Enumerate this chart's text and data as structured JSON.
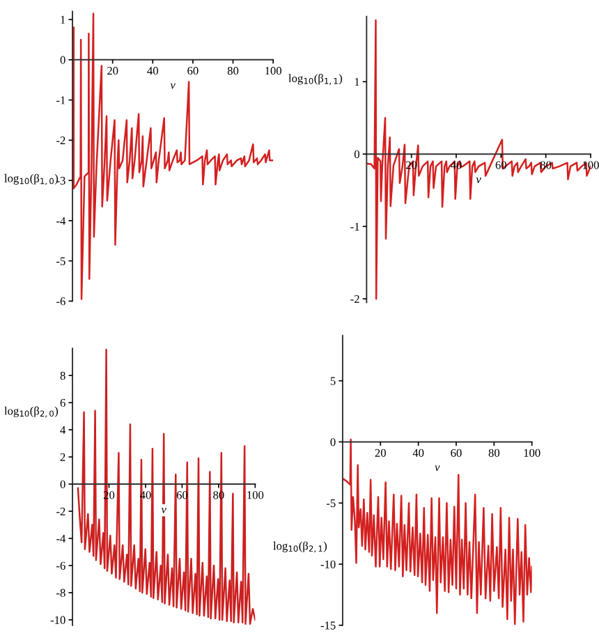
{
  "chart_data": [
    {
      "type": "line",
      "xlabel": "v",
      "ylabel": "log$_{10}$(β$_{1,0}$)",
      "xlim": [
        0,
        100
      ],
      "ylim": [
        -6,
        1.2
      ],
      "xticks": [
        20,
        40,
        60,
        80,
        100
      ],
      "yticks": [
        -6,
        -5,
        -4,
        -3,
        -2,
        -1,
        0,
        1
      ],
      "x": [
        0.6,
        0.6,
        2,
        4,
        4.2,
        4.5,
        6,
        8,
        8.1,
        8.4,
        9.5,
        10.4,
        10.7,
        12,
        14.5,
        14.8,
        16,
        17,
        17.3,
        19,
        21,
        21.3,
        22.5,
        23,
        23.3,
        25,
        27,
        27.3,
        28.5,
        29.6,
        29.9,
        31,
        33,
        33.3,
        34.5,
        35,
        35.3,
        37,
        39,
        39.3,
        40.5,
        41.6,
        41.9,
        43,
        45.7,
        46,
        47.5,
        48,
        48.3,
        50,
        52,
        52.3,
        53.5,
        54,
        54.3,
        56,
        58,
        58.3,
        62,
        64.7,
        65,
        66,
        67,
        67.3,
        69,
        71,
        71.3,
        72.5,
        73,
        73.3,
        75,
        77,
        77.3,
        79,
        79.3,
        82,
        84,
        84.3,
        85.7,
        86,
        88,
        90,
        90.3,
        92,
        92.3,
        94,
        96,
        96.3,
        98,
        98.3,
        100
      ],
      "series": [
        {
          "color": "#d42020",
          "values": [
            0.8,
            -3.2,
            -3.1,
            -2.9,
            0.5,
            -5.95,
            -2.9,
            -2.8,
            0.65,
            -5.45,
            -2.6,
            1.15,
            -4.4,
            -2.6,
            -0.15,
            -3.65,
            -2.55,
            -1.4,
            -3.5,
            -2.5,
            -1.5,
            -4.6,
            -2.5,
            -2.0,
            -2.7,
            -2.5,
            -1.5,
            -3.05,
            -2.5,
            -1.7,
            -2.95,
            -2.5,
            -1.35,
            -2.8,
            -2.5,
            -1.9,
            -3.15,
            -2.5,
            -1.7,
            -2.7,
            -2.5,
            -2.3,
            -3.05,
            -2.5,
            -1.45,
            -2.7,
            -2.5,
            -2.3,
            -2.75,
            -2.5,
            -2.25,
            -2.55,
            -2.5,
            -2.3,
            -2.6,
            -2.5,
            -0.55,
            -2.6,
            -2.5,
            -2.4,
            -3.1,
            -2.5,
            -2.25,
            -2.6,
            -2.5,
            -2.4,
            -3.1,
            -2.5,
            -2.35,
            -2.75,
            -2.5,
            -2.35,
            -2.6,
            -2.5,
            -2.65,
            -2.5,
            -2.45,
            -2.6,
            -2.4,
            -2.65,
            -2.5,
            -2.1,
            -2.55,
            -2.45,
            -2.6,
            -2.5,
            -2.35,
            -2.55,
            -2.25,
            -2.5,
            -2.5
          ]
        }
      ]
    },
    {
      "type": "line",
      "xlabel": "v",
      "ylabel": "log$_{10}$(β$_{1,1}$)",
      "xlim": [
        0,
        100
      ],
      "ylim": [
        -2.05,
        1.9
      ],
      "xticks": [
        20,
        40,
        60,
        80,
        100
      ],
      "yticks": [
        -2,
        -1,
        0,
        1
      ],
      "x": [
        0,
        2,
        3.5,
        4.1,
        4.3,
        5,
        6.2,
        6.4,
        7,
        8.3,
        8.6,
        9.5,
        10.4,
        10.7,
        12,
        14.5,
        14.8,
        16,
        17,
        17.3,
        19,
        20.7,
        21,
        22,
        23,
        23.3,
        25,
        27.3,
        27.6,
        28.5,
        29.6,
        29.9,
        31,
        33.5,
        33.8,
        34.8,
        35.6,
        35.9,
        37,
        39.3,
        39.6,
        40.5,
        41.6,
        41.9,
        43,
        46,
        46.3,
        47.2,
        48.2,
        48.5,
        50,
        52.8,
        53.1,
        55,
        60.5,
        60.8,
        62,
        64.8,
        65.1,
        66,
        67.3,
        67.6,
        69,
        71,
        71.3,
        72.5,
        73.5,
        73.8,
        75,
        77.6,
        77.9,
        80,
        82.8,
        83.1,
        86,
        89.6,
        89.9,
        91,
        93.8,
        94.1,
        96,
        98,
        98.3,
        100
      ],
      "series": [
        {
          "color": "#d42020",
          "values": [
            -0.13,
            -0.14,
            -0.2,
            1.85,
            -2.0,
            -0.05,
            -0.1,
            -0.65,
            -0.17,
            0.5,
            -1.17,
            -0.15,
            0.23,
            -0.72,
            -0.16,
            0.07,
            -0.4,
            -0.17,
            0.13,
            -0.68,
            -0.17,
            -0.1,
            -0.57,
            -0.17,
            0.12,
            -0.3,
            -0.17,
            -0.1,
            -0.6,
            -0.17,
            -0.1,
            -0.47,
            -0.17,
            -0.1,
            -0.73,
            -0.17,
            -0.1,
            -0.25,
            -0.17,
            -0.1,
            -0.62,
            -0.17,
            -0.1,
            -0.18,
            -0.17,
            -0.1,
            -0.62,
            -0.17,
            -0.1,
            -0.25,
            -0.17,
            -0.12,
            -0.3,
            -0.17,
            0.2,
            -0.2,
            -0.17,
            -0.1,
            -0.3,
            -0.17,
            -0.12,
            -0.25,
            -0.17,
            -0.07,
            -0.2,
            -0.17,
            -0.12,
            -0.28,
            -0.17,
            -0.12,
            -0.25,
            -0.17,
            -0.12,
            -0.2,
            -0.17,
            -0.12,
            -0.35,
            -0.17,
            -0.12,
            -0.23,
            -0.17,
            -0.12,
            -0.3,
            -0.17
          ]
        }
      ]
    },
    {
      "type": "line",
      "xlabel": "v",
      "ylabel": "log$_{10}$(β$_{2,0}$)",
      "xlim": [
        0,
        100
      ],
      "ylim": [
        -10.4,
        10.0
      ],
      "xticks": [
        20,
        40,
        60,
        80,
        100
      ],
      "yticks": [
        -10,
        -8,
        -6,
        -4,
        -2,
        0,
        2,
        4,
        6,
        8
      ],
      "x": [
        3,
        4,
        5,
        6.3,
        6.8,
        8.5,
        9.3,
        10.8,
        11.5,
        12.4,
        12.9,
        14.6,
        15.4,
        16.9,
        17.6,
        18.5,
        19,
        20.7,
        21.5,
        23,
        23.8,
        25.3,
        25.8,
        27.5,
        28.3,
        29.8,
        30.6,
        31.6,
        32.1,
        33.8,
        34.6,
        36.1,
        36.9,
        37.7,
        38.2,
        39.9,
        40.7,
        42.2,
        43,
        43.8,
        44.3,
        46,
        46.8,
        48.3,
        49.1,
        50,
        50.5,
        52.2,
        53,
        54.5,
        55.3,
        56.5,
        57,
        58.7,
        59.5,
        61,
        61.8,
        62.8,
        63.3,
        65,
        65.8,
        67.3,
        68.1,
        69,
        69.5,
        71.2,
        72,
        73.5,
        74.3,
        75.2,
        75.7,
        77.4,
        78.2,
        79.7,
        80.5,
        81.5,
        82,
        83.7,
        84.5,
        86,
        86.8,
        87.8,
        88.3,
        90,
        90.8,
        92.3,
        93.1,
        94.2,
        94.7,
        96.4,
        97.2,
        98.7,
        100
      ],
      "series": [
        {
          "color": "#cc2020",
          "values": [
            -0.3,
            -2.5,
            -4.3,
            5.3,
            -4.8,
            -2.2,
            -5.0,
            -3.0,
            -5.3,
            5.4,
            -5.6,
            -2.6,
            -5.9,
            -3.6,
            -6.2,
            9.9,
            -6.4,
            -3.8,
            -6.6,
            -4.5,
            -6.9,
            2.3,
            -7.0,
            -4.5,
            -7.2,
            -5.2,
            -7.4,
            4.4,
            -7.5,
            -4.5,
            -7.7,
            -5.5,
            -7.9,
            1.8,
            -8.0,
            -4.8,
            -8.1,
            -5.8,
            -8.3,
            2.6,
            -8.4,
            -5.0,
            -8.5,
            -6.0,
            -8.7,
            3.7,
            -8.8,
            -5.2,
            -8.9,
            -6.2,
            -9.0,
            0.7,
            -9.1,
            -5.5,
            -9.2,
            -6.5,
            -9.3,
            1.6,
            -9.4,
            -5.5,
            -9.5,
            -6.6,
            -9.6,
            1.9,
            -9.7,
            -5.8,
            -9.7,
            -6.8,
            -9.8,
            0.9,
            -9.9,
            -6.0,
            -9.9,
            -7.0,
            -10.0,
            2.3,
            -10.0,
            -6.2,
            -10.1,
            -7.1,
            -10.1,
            -0.7,
            -10.2,
            -6.5,
            -10.2,
            -7.2,
            -10.2,
            2.8,
            -10.3,
            -6.6,
            -10.3,
            -9.2,
            -10.0
          ]
        }
      ]
    },
    {
      "type": "line",
      "xlabel": "v",
      "ylabel": "log$_{10}$(β$_{2,1}$)",
      "xlim": [
        0,
        100
      ],
      "ylim": [
        -15,
        8.7
      ],
      "xticks": [
        20,
        40,
        60,
        80,
        100
      ],
      "yticks": [
        -15,
        -10,
        -5,
        0,
        5
      ],
      "x": [
        0,
        2,
        4,
        4.3,
        4.7,
        5.5,
        6.5,
        7.2,
        8,
        8.5,
        9.5,
        10.3,
        11.2,
        12,
        13,
        14,
        14.8,
        15.5,
        16.5,
        17.5,
        18.8,
        19.6,
        20.5,
        21.5,
        22.7,
        23.5,
        24.5,
        25.5,
        27,
        27.8,
        28.7,
        29.8,
        31,
        31.8,
        32.7,
        33.7,
        35,
        35.8,
        37,
        38,
        39,
        39.8,
        41,
        42,
        43,
        43.8,
        45,
        46,
        47,
        47.8,
        49,
        49.8,
        51,
        51.8,
        53,
        54,
        55,
        56,
        57,
        58,
        59,
        60,
        61.2,
        62,
        63,
        64,
        65,
        66,
        67,
        68,
        70,
        71,
        72,
        73,
        74.5,
        75.5,
        77,
        78,
        79,
        80,
        81.5,
        82.5,
        83.5,
        84.5,
        86,
        87,
        88,
        89,
        90,
        91,
        92.5,
        93.5,
        94.5,
        95.5,
        96.5,
        97.5,
        98.5,
        99.5,
        100
      ],
      "series": [
        {
          "color": "#d42020",
          "values": [
            -3.0,
            -3.2,
            -3.5,
            0.2,
            -7.2,
            -4.5,
            -6.5,
            -9.9,
            -1.9,
            -7.0,
            -5.5,
            -8.5,
            -4.7,
            -8.8,
            -5.8,
            -9.0,
            -3.1,
            -9.3,
            -6.0,
            -10.2,
            -4.5,
            -10.2,
            -6.2,
            -9.6,
            -3.3,
            -10.2,
            -6.5,
            -10.4,
            -4.3,
            -10.5,
            -6.7,
            -10.2,
            -4.4,
            -11.0,
            -6.8,
            -10.5,
            -5.0,
            -10.6,
            -7.0,
            -10.9,
            -4.3,
            -11.0,
            -7.5,
            -11.5,
            -5.4,
            -11.7,
            -7.6,
            -12.2,
            -4.6,
            -11.3,
            -7.8,
            -14.0,
            -4.6,
            -11.5,
            -7.8,
            -12.2,
            -5.0,
            -12.3,
            -8.0,
            -11.7,
            -5.3,
            -12.0,
            -2.7,
            -12.5,
            -8.0,
            -12.0,
            -5.0,
            -12.5,
            -8.2,
            -12.8,
            -4.3,
            -14.0,
            -8.2,
            -12.5,
            -5.4,
            -12.8,
            -8.5,
            -13.0,
            -5.9,
            -12.2,
            -8.6,
            -12.8,
            -5.4,
            -13.5,
            -8.8,
            -14.5,
            -6.2,
            -13.0,
            -8.8,
            -14.9,
            -6.3,
            -12.5,
            -9.0,
            -14.7,
            -6.8,
            -12.5,
            -9.5,
            -12.3,
            -10.2
          ]
        }
      ]
    }
  ]
}
